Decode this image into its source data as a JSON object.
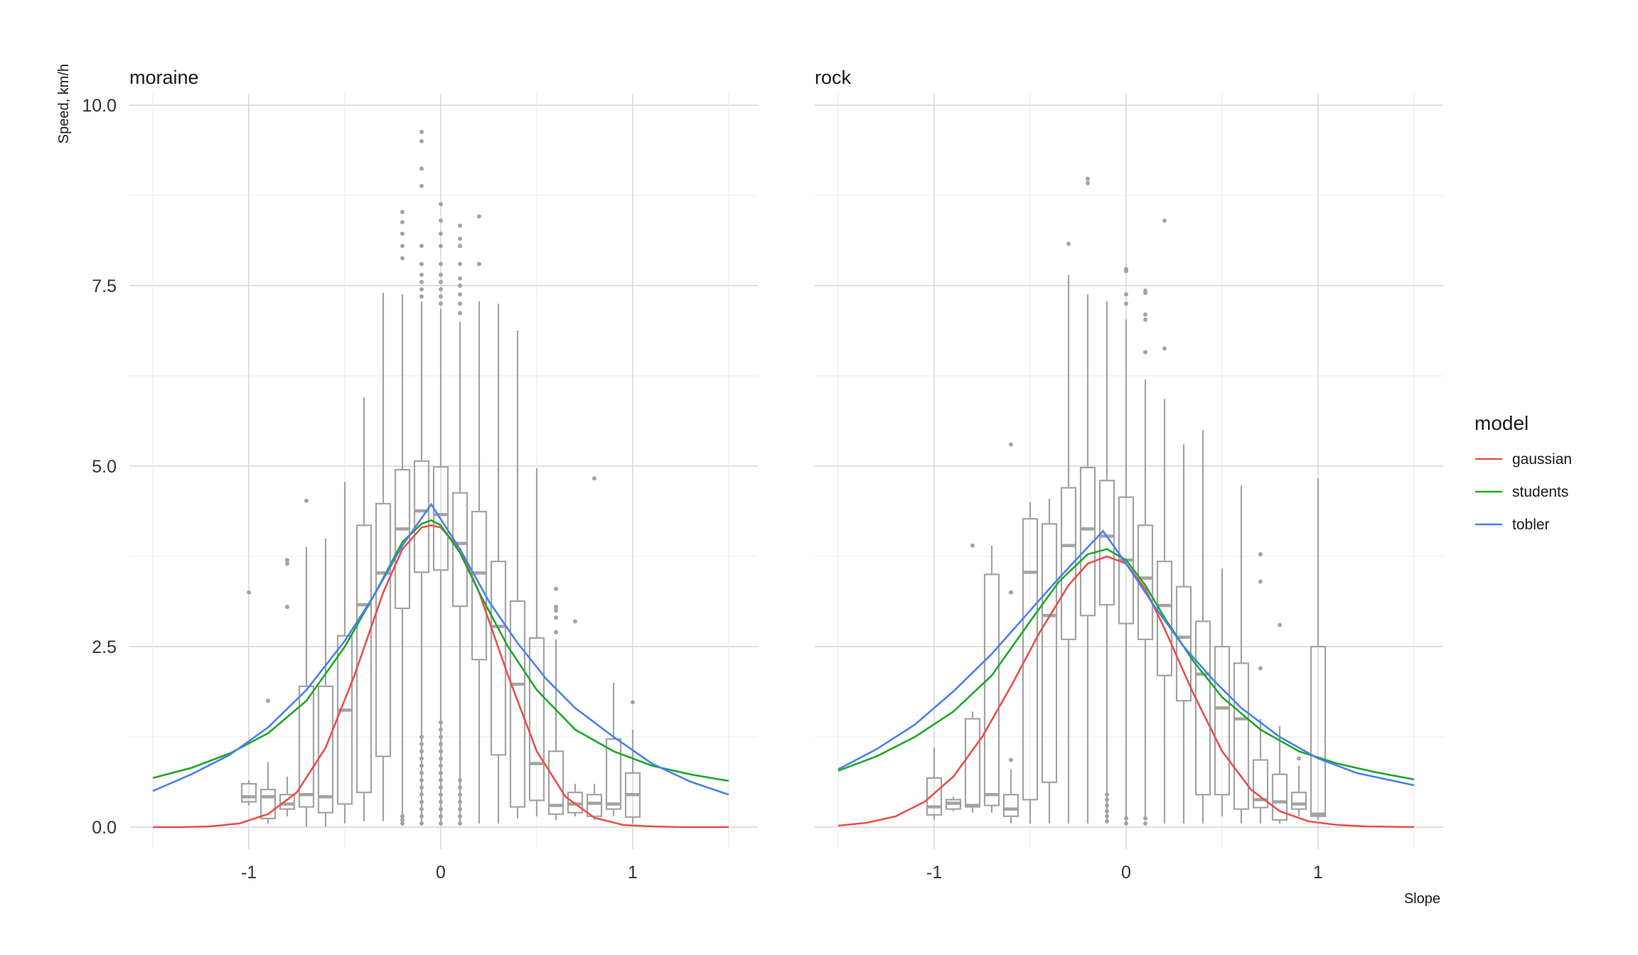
{
  "chart_data": {
    "type": "boxplot",
    "title": "",
    "xlabel": "Slope",
    "ylabel": "Speed, km/h",
    "xlim": [
      -1.5,
      1.5
    ],
    "ylim": [
      -0.4,
      10.1
    ],
    "x_ticks": [
      {
        "value": -1,
        "label": "-1"
      },
      {
        "value": 0,
        "label": "0"
      },
      {
        "value": 1,
        "label": "1"
      }
    ],
    "y_ticks": [
      {
        "value": 0,
        "label": "0.0"
      },
      {
        "value": 2.5,
        "label": "2.5"
      },
      {
        "value": 5,
        "label": "5.0"
      },
      {
        "value": 7.5,
        "label": "7.5"
      },
      {
        "value": 10,
        "label": "10.0"
      }
    ],
    "grid": true,
    "legend": {
      "title": "model",
      "position": "right",
      "entries": [
        {
          "label": "gaussian",
          "color": "#e8504a"
        },
        {
          "label": "students",
          "color": "#1fa82a"
        },
        {
          "label": "tobler",
          "color": "#4a7ff0"
        }
      ]
    },
    "box_color": "#a3a3a3",
    "panels": [
      {
        "title": "moraine",
        "boxes": [
          {
            "x": -1.0,
            "q1": 0.35,
            "median": 0.42,
            "q3": 0.6,
            "low": 0.3,
            "high": 0.65,
            "outliers": [
              3.25
            ]
          },
          {
            "x": -0.9,
            "q1": 0.12,
            "median": 0.42,
            "q3": 0.52,
            "low": 0.05,
            "high": 0.9,
            "outliers": [
              1.75
            ]
          },
          {
            "x": -0.8,
            "q1": 0.25,
            "median": 0.32,
            "q3": 0.45,
            "low": 0.15,
            "high": 0.7,
            "outliers": [
              3.05,
              3.65,
              3.7
            ]
          },
          {
            "x": -0.7,
            "q1": 0.28,
            "median": 0.45,
            "q3": 1.95,
            "low": 0.0,
            "high": 3.88,
            "outliers": [
              4.52
            ]
          },
          {
            "x": -0.6,
            "q1": 0.2,
            "median": 0.42,
            "q3": 1.95,
            "low": 0.0,
            "high": 4.0,
            "outliers": []
          },
          {
            "x": -0.5,
            "q1": 0.32,
            "median": 1.62,
            "q3": 2.65,
            "low": 0.05,
            "high": 4.78,
            "outliers": []
          },
          {
            "x": -0.4,
            "q1": 0.48,
            "median": 3.08,
            "q3": 4.18,
            "low": 0.08,
            "high": 5.95,
            "outliers": []
          },
          {
            "x": -0.3,
            "q1": 0.98,
            "median": 3.52,
            "q3": 4.48,
            "low": 0.08,
            "high": 7.4,
            "outliers": []
          },
          {
            "x": -0.2,
            "q1": 3.03,
            "median": 4.13,
            "q3": 4.95,
            "low": 0.1,
            "high": 7.38,
            "outliers": [
              7.88,
              8.05,
              8.22,
              8.38,
              8.52,
              0.05,
              0.1,
              0.15
            ]
          },
          {
            "x": -0.1,
            "q1": 3.53,
            "median": 4.38,
            "q3": 5.07,
            "low": 0.05,
            "high": 7.28,
            "outliers": [
              7.35,
              7.45,
              7.55,
              7.65,
              7.8,
              8.05,
              8.88,
              9.12,
              9.5,
              9.63,
              0.05,
              0.15,
              0.25,
              0.35,
              0.45,
              0.55,
              0.65,
              0.75,
              0.85,
              0.95,
              1.05,
              1.15,
              1.25
            ]
          },
          {
            "x": 0.0,
            "q1": 3.56,
            "median": 4.33,
            "q3": 4.99,
            "low": 0.05,
            "high": 7.18,
            "outliers": [
              7.25,
              7.35,
              7.45,
              7.55,
              7.65,
              7.8,
              8.05,
              8.22,
              8.4,
              8.63,
              0.05,
              0.15,
              0.25,
              0.35,
              0.45,
              0.55,
              0.65,
              0.75,
              0.85,
              0.95,
              1.05,
              1.15,
              1.25,
              1.35,
              1.45
            ]
          },
          {
            "x": 0.1,
            "q1": 3.06,
            "median": 3.93,
            "q3": 4.63,
            "low": 0.05,
            "high": 7.0,
            "outliers": [
              7.12,
              7.25,
              7.38,
              7.5,
              7.6,
              7.8,
              8.05,
              8.15,
              8.33,
              0.05,
              0.15,
              0.25,
              0.35,
              0.45,
              0.55,
              0.65
            ]
          },
          {
            "x": 0.2,
            "q1": 2.32,
            "median": 3.52,
            "q3": 4.37,
            "low": 0.05,
            "high": 7.28,
            "outliers": [
              7.8,
              8.46
            ]
          },
          {
            "x": 0.3,
            "q1": 1.0,
            "median": 2.78,
            "q3": 3.68,
            "low": 0.05,
            "high": 7.25,
            "outliers": []
          },
          {
            "x": 0.4,
            "q1": 0.28,
            "median": 1.98,
            "q3": 3.13,
            "low": 0.12,
            "high": 6.88,
            "outliers": []
          },
          {
            "x": 0.5,
            "q1": 0.37,
            "median": 0.88,
            "q3": 2.62,
            "low": 0.15,
            "high": 4.97,
            "outliers": []
          },
          {
            "x": 0.6,
            "q1": 0.18,
            "median": 0.3,
            "q3": 1.05,
            "low": 0.1,
            "high": 2.6,
            "outliers": [
              2.7,
              2.9,
              3.0,
              3.05,
              3.3
            ]
          },
          {
            "x": 0.7,
            "q1": 0.2,
            "median": 0.32,
            "q3": 0.48,
            "low": 0.15,
            "high": 0.6,
            "outliers": [
              2.85
            ]
          },
          {
            "x": 0.8,
            "q1": 0.15,
            "median": 0.33,
            "q3": 0.45,
            "low": 0.1,
            "high": 0.6,
            "outliers": [
              4.83
            ]
          },
          {
            "x": 0.9,
            "q1": 0.25,
            "median": 0.32,
            "q3": 1.22,
            "low": 0.15,
            "high": 2.0,
            "outliers": []
          },
          {
            "x": 1.0,
            "q1": 0.14,
            "median": 0.45,
            "q3": 0.75,
            "low": 0.05,
            "high": 1.35,
            "outliers": [
              1.73
            ]
          }
        ]
      },
      {
        "title": "rock",
        "boxes": [
          {
            "x": -1.0,
            "q1": 0.17,
            "median": 0.28,
            "q3": 0.68,
            "low": 0.1,
            "high": 1.1,
            "outliers": []
          },
          {
            "x": -0.9,
            "q1": 0.25,
            "median": 0.33,
            "q3": 0.38,
            "low": 0.22,
            "high": 0.42,
            "outliers": []
          },
          {
            "x": -0.8,
            "q1": 0.28,
            "median": 0.3,
            "q3": 1.5,
            "low": 0.2,
            "high": 1.6,
            "outliers": [
              3.9
            ]
          },
          {
            "x": -0.7,
            "q1": 0.3,
            "median": 0.45,
            "q3": 3.5,
            "low": 0.2,
            "high": 3.9,
            "outliers": []
          },
          {
            "x": -0.6,
            "q1": 0.15,
            "median": 0.25,
            "q3": 0.45,
            "low": 0.05,
            "high": 0.8,
            "outliers": [
              0.93,
              3.25,
              5.3
            ]
          },
          {
            "x": -0.5,
            "q1": 0.38,
            "median": 3.53,
            "q3": 4.27,
            "low": 0.05,
            "high": 4.5,
            "outliers": []
          },
          {
            "x": -0.4,
            "q1": 0.62,
            "median": 2.93,
            "q3": 4.2,
            "low": 0.05,
            "high": 4.55,
            "outliers": []
          },
          {
            "x": -0.3,
            "q1": 2.6,
            "median": 3.9,
            "q3": 4.7,
            "low": 0.05,
            "high": 7.65,
            "outliers": [
              8.08
            ]
          },
          {
            "x": -0.2,
            "q1": 2.93,
            "median": 4.13,
            "q3": 4.98,
            "low": 0.05,
            "high": 7.38,
            "outliers": [
              8.92,
              8.98
            ]
          },
          {
            "x": -0.1,
            "q1": 3.08,
            "median": 4.03,
            "q3": 4.8,
            "low": 0.05,
            "high": 7.28,
            "outliers": [
              0.08,
              0.15,
              0.22,
              0.3,
              0.38,
              0.45
            ]
          },
          {
            "x": 0.0,
            "q1": 2.82,
            "median": 3.7,
            "q3": 4.57,
            "low": 0.05,
            "high": 7.03,
            "outliers": [
              7.25,
              7.38,
              7.7,
              7.73,
              0.05,
              0.12
            ]
          },
          {
            "x": 0.1,
            "q1": 2.6,
            "median": 3.45,
            "q3": 4.18,
            "low": 0.15,
            "high": 6.2,
            "outliers": [
              6.58,
              7.03,
              7.1,
              7.4,
              7.43,
              0.05,
              0.12
            ]
          },
          {
            "x": 0.2,
            "q1": 2.1,
            "median": 3.07,
            "q3": 3.68,
            "low": 0.05,
            "high": 5.93,
            "outliers": [
              6.63,
              8.4
            ]
          },
          {
            "x": 0.3,
            "q1": 1.75,
            "median": 2.63,
            "q3": 3.33,
            "low": 0.05,
            "high": 5.3,
            "outliers": []
          },
          {
            "x": 0.4,
            "q1": 0.45,
            "median": 2.12,
            "q3": 2.85,
            "low": 0.05,
            "high": 5.5,
            "outliers": []
          },
          {
            "x": 0.5,
            "q1": 0.45,
            "median": 1.65,
            "q3": 2.5,
            "low": 0.15,
            "high": 3.58,
            "outliers": []
          },
          {
            "x": 0.6,
            "q1": 0.25,
            "median": 1.5,
            "q3": 2.27,
            "low": 0.05,
            "high": 4.73,
            "outliers": []
          },
          {
            "x": 0.7,
            "q1": 0.27,
            "median": 0.38,
            "q3": 0.93,
            "low": 0.05,
            "high": 1.5,
            "outliers": [
              2.2,
              3.4,
              3.78
            ]
          },
          {
            "x": 0.8,
            "q1": 0.1,
            "median": 0.35,
            "q3": 0.73,
            "low": 0.05,
            "high": 1.4,
            "outliers": [
              2.8
            ]
          },
          {
            "x": 0.9,
            "q1": 0.25,
            "median": 0.32,
            "q3": 0.48,
            "low": 0.15,
            "high": 0.85,
            "outliers": [
              0.95
            ]
          },
          {
            "x": 1.0,
            "q1": 0.15,
            "median": 0.18,
            "q3": 2.5,
            "low": 0.1,
            "high": 4.83,
            "outliers": []
          }
        ],
        "curves": null
      }
    ],
    "series": [
      {
        "name": "gaussian",
        "color": "#e8504a",
        "panels": {
          "moraine": {
            "x": [
              -1.5,
              -1.35,
              -1.2,
              -1.05,
              -0.9,
              -0.75,
              -0.6,
              -0.45,
              -0.3,
              -0.2,
              -0.1,
              -0.05,
              0.0,
              0.1,
              0.2,
              0.35,
              0.5,
              0.65,
              0.8,
              0.95,
              1.1,
              1.25,
              1.5
            ],
            "y": [
              0.0,
              0.0,
              0.01,
              0.05,
              0.18,
              0.48,
              1.1,
              2.1,
              3.25,
              3.85,
              4.15,
              4.18,
              4.15,
              3.85,
              3.25,
              2.1,
              1.05,
              0.42,
              0.13,
              0.03,
              0.01,
              0.0,
              0.0
            ]
          },
          "rock": {
            "x": [
              -1.5,
              -1.35,
              -1.2,
              -1.05,
              -0.9,
              -0.75,
              -0.6,
              -0.45,
              -0.3,
              -0.2,
              -0.1,
              0.0,
              0.1,
              0.2,
              0.35,
              0.5,
              0.65,
              0.8,
              0.95,
              1.1,
              1.25,
              1.5
            ],
            "y": [
              0.02,
              0.06,
              0.15,
              0.35,
              0.7,
              1.25,
              1.95,
              2.7,
              3.35,
              3.65,
              3.75,
              3.65,
              3.3,
              2.75,
              1.85,
              1.05,
              0.52,
              0.22,
              0.08,
              0.03,
              0.01,
              0.0
            ]
          }
        }
      },
      {
        "name": "students",
        "color": "#1fa82a",
        "panels": {
          "moraine": {
            "x": [
              -1.5,
              -1.3,
              -1.1,
              -0.9,
              -0.7,
              -0.5,
              -0.35,
              -0.2,
              -0.1,
              -0.05,
              0.0,
              0.1,
              0.2,
              0.35,
              0.5,
              0.7,
              0.9,
              1.1,
              1.3,
              1.5
            ],
            "y": [
              0.68,
              0.82,
              1.02,
              1.3,
              1.75,
              2.5,
              3.2,
              3.95,
              4.2,
              4.25,
              4.18,
              3.8,
              3.25,
              2.5,
              1.9,
              1.35,
              1.05,
              0.85,
              0.73,
              0.64
            ]
          },
          "rock": {
            "x": [
              -1.5,
              -1.3,
              -1.1,
              -0.9,
              -0.7,
              -0.5,
              -0.35,
              -0.2,
              -0.1,
              0.0,
              0.1,
              0.2,
              0.35,
              0.5,
              0.7,
              0.9,
              1.1,
              1.3,
              1.5
            ],
            "y": [
              0.78,
              0.98,
              1.25,
              1.6,
              2.1,
              2.85,
              3.4,
              3.78,
              3.85,
              3.7,
              3.35,
              2.9,
              2.3,
              1.8,
              1.35,
              1.05,
              0.88,
              0.76,
              0.66
            ]
          }
        }
      },
      {
        "name": "tobler",
        "color": "#4a7ff0",
        "panels": {
          "moraine": {
            "x": [
              -1.5,
              -1.3,
              -1.1,
              -0.9,
              -0.7,
              -0.5,
              -0.35,
              -0.2,
              -0.05,
              0.1,
              0.25,
              0.4,
              0.55,
              0.7,
              0.9,
              1.1,
              1.3,
              1.5
            ],
            "y": [
              0.5,
              0.73,
              1.0,
              1.38,
              1.9,
              2.58,
              3.2,
              3.9,
              4.47,
              3.85,
              3.13,
              2.55,
              2.05,
              1.65,
              1.25,
              0.88,
              0.63,
              0.45
            ]
          },
          "rock": {
            "x": [
              -1.5,
              -1.3,
              -1.1,
              -0.9,
              -0.7,
              -0.5,
              -0.35,
              -0.22,
              -0.12,
              0.0,
              0.15,
              0.3,
              0.45,
              0.6,
              0.8,
              1.0,
              1.2,
              1.5
            ],
            "y": [
              0.8,
              1.08,
              1.42,
              1.88,
              2.4,
              3.0,
              3.45,
              3.82,
              4.1,
              3.65,
              3.05,
              2.5,
              2.05,
              1.65,
              1.25,
              0.95,
              0.75,
              0.58
            ]
          }
        }
      }
    ]
  }
}
